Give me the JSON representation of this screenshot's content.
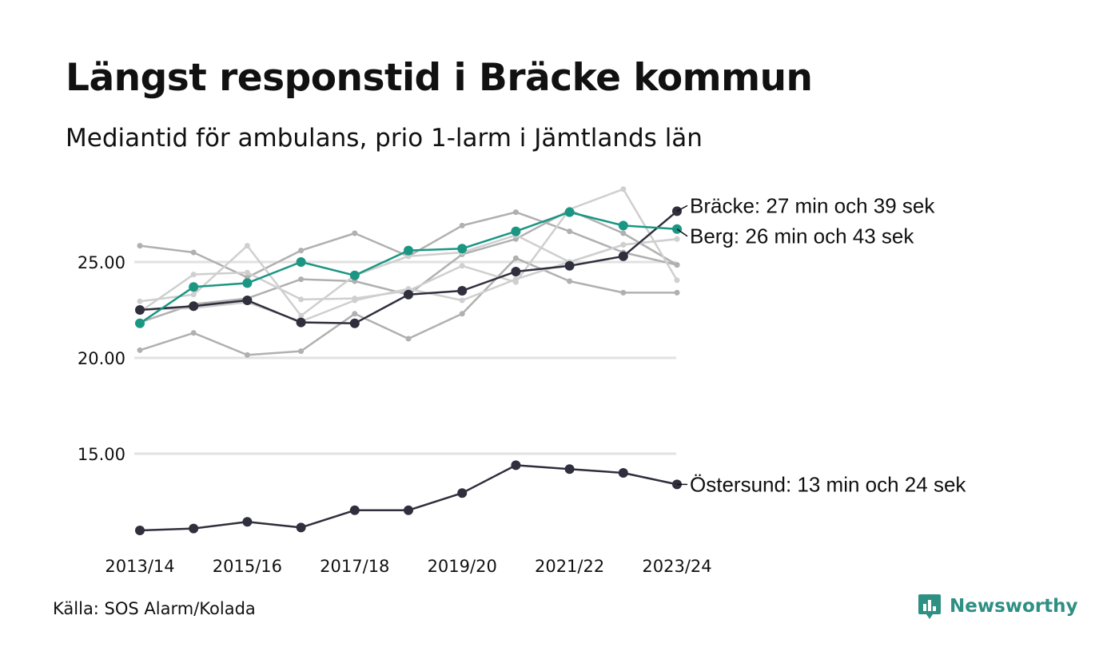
{
  "title": "Längst responstid i Bräcke kommun",
  "subtitle": "Mediantid för ambulans, prio 1-larm i Jämtlands län",
  "source": "Källa: SOS Alarm/Kolada",
  "brand": "Newsworthy",
  "colors": {
    "highlight_dark": "#2f2f3d",
    "highlight_teal": "#1a9683",
    "background_light": "#cfcfcf",
    "background_mid": "#b0b0b0",
    "gridline": "#e2e2e2",
    "brand": "#2e8f83"
  },
  "chart_data": {
    "type": "line",
    "title": "Längst responstid i Bräcke kommun",
    "subtitle": "Mediantid för ambulans, prio 1-larm i Jämtlands län",
    "xlabel": "",
    "ylabel": "",
    "x": [
      "2013/14",
      "2014/15",
      "2015/16",
      "2016/17",
      "2017/18",
      "2018/19",
      "2019/20",
      "2020/21",
      "2021/22",
      "2022/23",
      "2023/24"
    ],
    "x_tick_labels": [
      "2013/14",
      "2015/16",
      "2017/18",
      "2019/20",
      "2021/22",
      "2023/24"
    ],
    "y_ticks": [
      15,
      20,
      25
    ],
    "y_tick_labels": [
      "15.00",
      "20.00",
      "25.00"
    ],
    "ylim": [
      11,
      29
    ],
    "grid": "horizontal",
    "legend": "none (end-of-line labels)",
    "highlighted_series": [
      {
        "name": "Bräcke",
        "label": "Bräcke: 27 min och 39 sek",
        "color": "#2f2f3d",
        "values": [
          22.5,
          22.7,
          23.0,
          21.85,
          21.8,
          23.3,
          23.5,
          24.5,
          24.8,
          25.3,
          27.65
        ]
      },
      {
        "name": "Berg",
        "label": "Berg: 26 min och 43 sek",
        "color": "#1a9683",
        "values": [
          21.8,
          23.7,
          23.9,
          25.0,
          24.3,
          25.6,
          25.7,
          26.6,
          27.6,
          26.9,
          26.72
        ]
      },
      {
        "name": "Östersund",
        "label": "Östersund: 13 min och 24 sek",
        "color": "#2f2f3d",
        "values": [
          11.0,
          11.1,
          11.45,
          11.15,
          12.05,
          12.05,
          12.95,
          14.4,
          14.2,
          14.0,
          13.4
        ]
      }
    ],
    "background_series": [
      {
        "color": "#b0b0b0",
        "values": [
          25.85,
          25.5,
          24.2,
          25.6,
          26.5,
          25.3,
          26.9,
          27.6,
          26.6,
          25.5,
          24.85
        ]
      },
      {
        "color": "#b0b0b0",
        "values": [
          20.4,
          21.3,
          20.15,
          20.35,
          22.3,
          21.0,
          22.3,
          25.2,
          24.0,
          23.4,
          23.4
        ]
      },
      {
        "color": "#b0b0b0",
        "values": [
          21.85,
          22.8,
          23.1,
          24.1,
          24.0,
          23.3,
          25.4,
          26.2,
          27.7,
          26.5,
          24.85
        ]
      },
      {
        "color": "#cfcfcf",
        "values": [
          22.95,
          23.3,
          25.85,
          22.2,
          24.3,
          25.3,
          25.5,
          26.4,
          25.0,
          25.9,
          26.2
        ]
      },
      {
        "color": "#cfcfcf",
        "values": [
          22.4,
          24.35,
          24.45,
          23.05,
          23.1,
          23.5,
          24.8,
          23.95,
          27.75,
          28.8,
          24.05
        ]
      },
      {
        "color": "#cfcfcf",
        "values": [
          22.5,
          22.6,
          22.9,
          21.9,
          23.0,
          23.6,
          23.0,
          24.1,
          25.0,
          25.9,
          26.2
        ]
      }
    ]
  }
}
